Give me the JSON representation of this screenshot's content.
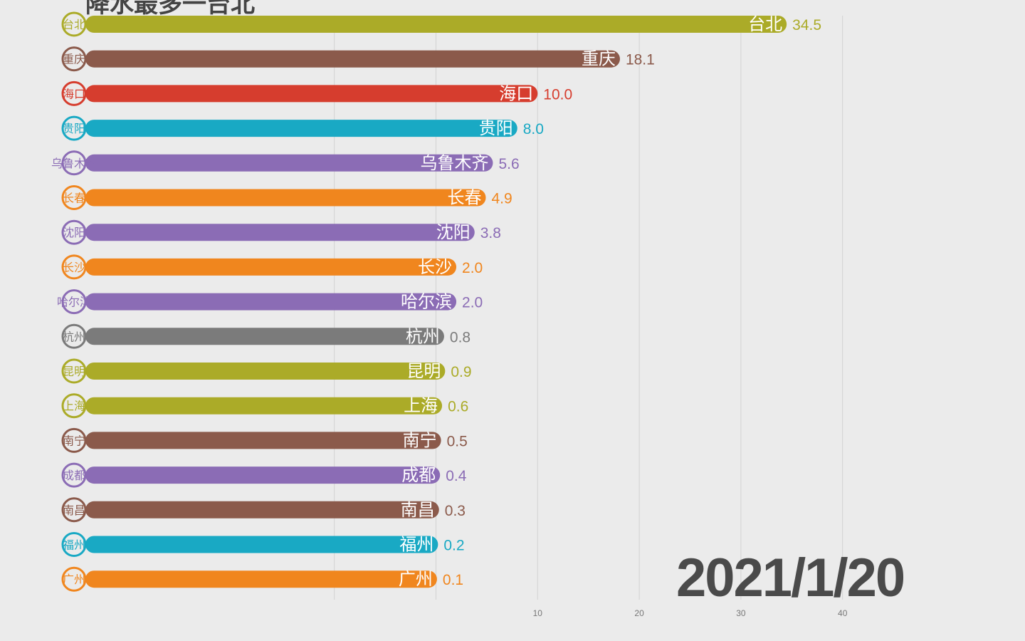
{
  "title": "降水最多一台北",
  "date_label": "2021/1/20",
  "chart_data": {
    "type": "bar",
    "orientation": "horizontal",
    "title": "降水最多一台北",
    "xlim": [
      -5,
      48
    ],
    "xticks": [
      10,
      20,
      30,
      40
    ],
    "gridlines": [
      -10,
      0,
      10,
      20,
      30,
      40
    ],
    "categories": [
      "台北",
      "重庆",
      "海口",
      "贵阳",
      "乌鲁木齐",
      "长春",
      "沈阳",
      "长沙",
      "哈尔滨",
      "杭州",
      "昆明",
      "上海",
      "南宁",
      "成都",
      "南昌",
      "福州",
      "广州"
    ],
    "values": [
      34.5,
      18.1,
      10.0,
      8.0,
      5.6,
      4.9,
      3.8,
      2.0,
      2.0,
      0.8,
      0.9,
      0.6,
      0.5,
      0.4,
      0.3,
      0.2,
      0.1
    ],
    "value_labels": [
      "34.5",
      "18.1",
      "10.0",
      "8.0",
      "5.6",
      "4.9",
      "3.8",
      "2.0",
      "2.0",
      "0.8",
      "0.9",
      "0.6",
      "0.5",
      "0.4",
      "0.3",
      "0.2",
      "0.1"
    ],
    "colors": [
      "#abab28",
      "#8b5a4b",
      "#d63d2e",
      "#19a9c4",
      "#8b6cb5",
      "#f0861e",
      "#8b6cb5",
      "#f0861e",
      "#8b6cb5",
      "#7b7b7b",
      "#abab28",
      "#abab28",
      "#8b5a4b",
      "#8b6cb5",
      "#8b5a4b",
      "#19a9c4",
      "#f0861e"
    ]
  }
}
